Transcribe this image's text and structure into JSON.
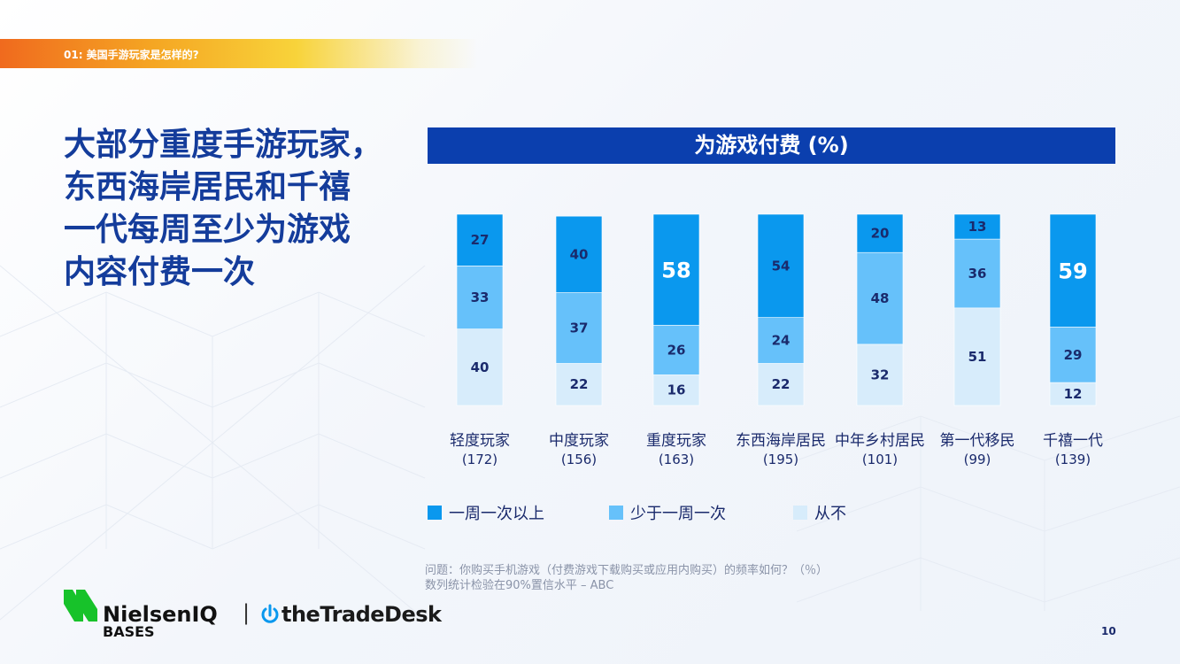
{
  "section": {
    "label": "01: 美国手游玩家是怎样的?"
  },
  "headline": {
    "lines": [
      "大部分重度手游玩家，",
      "东西海岸居民和千禧",
      "一代每周至少为游戏",
      "内容付费一次"
    ]
  },
  "chart_data": {
    "type": "bar",
    "stacked": true,
    "title": "为游戏付费 (%)",
    "categories": [
      "轻度玩家",
      "中度玩家",
      "重度玩家",
      "东西海岸居民",
      "中年乡村居民",
      "第一代移民",
      "千禧一代"
    ],
    "category_counts": [
      "(172)",
      "(156)",
      "(163)",
      "(195)",
      "(101)",
      "(99)",
      "(139)"
    ],
    "series": [
      {
        "name": "一周一次以上",
        "color": "#0a98ee",
        "values": [
          27,
          40,
          58,
          54,
          20,
          13,
          59
        ]
      },
      {
        "name": "少于一周一次",
        "color": "#66c1fa",
        "values": [
          33,
          37,
          26,
          24,
          48,
          36,
          29
        ]
      },
      {
        "name": "从不",
        "color": "#d7ecfb",
        "values": [
          40,
          22,
          16,
          22,
          32,
          51,
          12
        ]
      }
    ],
    "highlight": [
      false,
      false,
      true,
      false,
      false,
      false,
      true
    ],
    "ylim": [
      0,
      100
    ],
    "legend_position": "bottom-left"
  },
  "footnote": {
    "question": "问题：你购买手机游戏（付费游戏下载购买或应用内购买）的频率如何？（％）",
    "stat_note": "数列统计检验在90%置信水平 – ABC"
  },
  "logos": {
    "nielsen_name": "NielsenIQ",
    "nielsen_sub": "BASES",
    "separator": "|",
    "tradedesk": "theTradeDesk"
  },
  "page_number": "10"
}
